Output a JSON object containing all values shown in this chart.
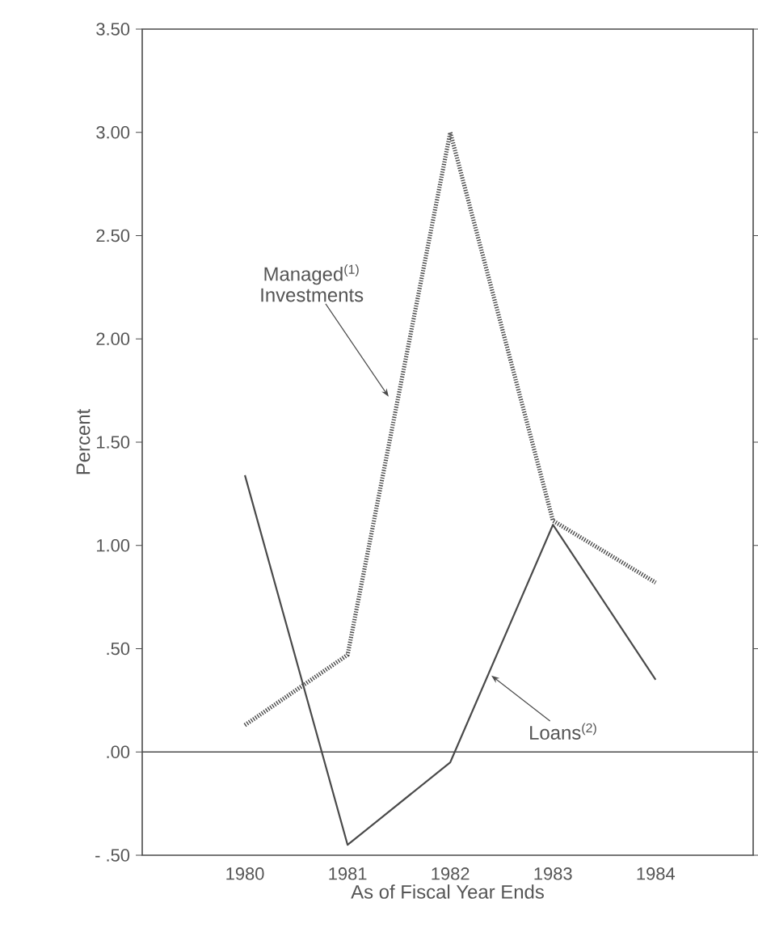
{
  "chart_data": {
    "type": "line",
    "xlabel": "As of Fiscal Year Ends",
    "ylabel": "Percent",
    "x": [
      1980,
      1981,
      1982,
      1983,
      1984
    ],
    "xlim": [
      1979,
      1984.95
    ],
    "xticks": [
      1980,
      1981,
      1982,
      1983,
      1984
    ],
    "ylim": [
      -0.5,
      3.5
    ],
    "yticks": [
      {
        "value": -0.5,
        "label": "- .50"
      },
      {
        "value": 0,
        "label": ".00"
      },
      {
        "value": 0.5,
        "label": ".50"
      },
      {
        "value": 1,
        "label": "1.00"
      },
      {
        "value": 1.5,
        "label": "1.50"
      },
      {
        "value": 2,
        "label": "2.00"
      },
      {
        "value": 2.5,
        "label": "2.50"
      },
      {
        "value": 3,
        "label": "3.00"
      },
      {
        "value": 3.5,
        "label": "3.50"
      }
    ],
    "series": [
      {
        "color": "#4a4a4a",
        "line_style": "dotted",
        "values": [
          0.13,
          0.47,
          3.0,
          1.12,
          0.82
        ]
      },
      {
        "color": "#4a4a4a",
        "line_style": "solid",
        "values": [
          1.34,
          -0.45,
          -0.05,
          1.1,
          0.35
        ]
      }
    ],
    "annotations": [
      {
        "text": "Managed$^{(1)}$ Investments",
        "x": 1981.4,
        "y": 1.72
      },
      {
        "text": "Loans$^{(2)}$",
        "x": 1982.4,
        "y": 0.37
      }
    ],
    "ref_lines": [
      {
        "axis": "y",
        "value": 0,
        "color": "#4a4a4a"
      }
    ]
  }
}
